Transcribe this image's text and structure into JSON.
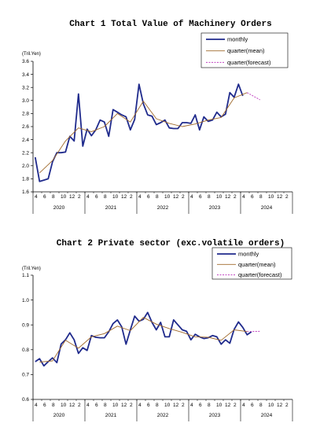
{
  "chart_data": [
    {
      "type": "line",
      "title": "Chart 1 Total Value of Machinery Orders",
      "ylabel": "(Tril.Yen)",
      "ylim": [
        1.6,
        3.6
      ],
      "yticks": [
        "1.6",
        "1.8",
        "2.0",
        "2.2",
        "2.4",
        "2.6",
        "2.8",
        "3.0",
        "3.2",
        "3.4",
        "3.6"
      ],
      "month_ticks": [
        "4",
        "6",
        "8",
        "10",
        "12",
        "2",
        "4",
        "6",
        "8",
        "10",
        "12",
        "2",
        "4",
        "6",
        "8",
        "10",
        "12",
        "2",
        "4",
        "6",
        "8",
        "10",
        "12",
        "2",
        "4",
        "6",
        "8",
        "10",
        "12",
        "2"
      ],
      "years": [
        "2020",
        "2021",
        "2022",
        "2023",
        "2024"
      ],
      "legend_position": "top-right",
      "series": [
        {
          "name": "monthly",
          "color": "#1f2a8c",
          "style": "solid-thick",
          "start": "2020-04",
          "values": [
            2.13,
            1.76,
            1.78,
            1.8,
            2.06,
            2.2,
            2.2,
            2.21,
            2.45,
            2.38,
            3.1,
            2.3,
            2.56,
            2.46,
            2.55,
            2.7,
            2.67,
            2.45,
            2.86,
            2.82,
            2.78,
            2.75,
            2.55,
            2.71,
            3.25,
            2.95,
            2.78,
            2.76,
            2.63,
            2.66,
            2.7,
            2.58,
            2.57,
            2.57,
            2.66,
            2.66,
            2.65,
            2.78,
            2.55,
            2.75,
            2.68,
            2.7,
            2.82,
            2.75,
            2.79,
            3.12,
            3.05,
            3.25,
            3.07
          ]
        },
        {
          "name": "quarter(mean)",
          "color": "#a06a2c",
          "style": "solid-thin",
          "x": [
            "2020-05",
            "2020-08",
            "2020-11",
            "2021-02",
            "2021-05",
            "2021-08",
            "2021-11",
            "2022-02",
            "2022-05",
            "2022-08",
            "2022-11",
            "2023-02",
            "2023-05",
            "2023-08",
            "2023-11",
            "2024-02",
            "2024-05"
          ],
          "values": [
            1.89,
            2.08,
            2.38,
            2.58,
            2.52,
            2.6,
            2.8,
            2.67,
            2.99,
            2.72,
            2.65,
            2.6,
            2.64,
            2.7,
            2.74,
            3.04,
            3.12
          ]
        },
        {
          "name": "quarter(forecast)",
          "color": "#c040c0",
          "style": "dashed",
          "x": [
            "2024-05",
            "2024-08"
          ],
          "values": [
            3.12,
            3.01
          ]
        }
      ]
    },
    {
      "type": "line",
      "title": "Chart 2 Private sector (exc.volatile orders)",
      "ylabel": "(Tril.Yen)",
      "ylim": [
        0.6,
        1.1
      ],
      "yticks": [
        "0.6",
        "0.7",
        "0.8",
        "0.9",
        "1.0",
        "1.1"
      ],
      "month_ticks": [
        "4",
        "6",
        "8",
        "10",
        "12",
        "2",
        "4",
        "6",
        "8",
        "10",
        "12",
        "2",
        "4",
        "6",
        "8",
        "10",
        "12",
        "2",
        "4",
        "6",
        "8",
        "10",
        "12",
        "2",
        "4",
        "6",
        "8",
        "10",
        "12",
        "2"
      ],
      "years": [
        "2020",
        "2021",
        "2022",
        "2023",
        "2024"
      ],
      "legend_position": "top-right",
      "series": [
        {
          "name": "monthly",
          "color": "#1f2a8c",
          "style": "solid-thick",
          "start": "2020-04",
          "values": [
            0.752,
            0.764,
            0.735,
            0.752,
            0.767,
            0.748,
            0.823,
            0.84,
            0.868,
            0.84,
            0.785,
            0.808,
            0.797,
            0.857,
            0.85,
            0.848,
            0.848,
            0.872,
            0.905,
            0.92,
            0.892,
            0.822,
            0.88,
            0.935,
            0.915,
            0.922,
            0.95,
            0.91,
            0.88,
            0.91,
            0.852,
            0.852,
            0.92,
            0.9,
            0.88,
            0.874,
            0.84,
            0.862,
            0.852,
            0.845,
            0.848,
            0.857,
            0.852,
            0.822,
            0.84,
            0.826,
            0.882,
            0.912,
            0.89,
            0.86,
            0.872
          ]
        },
        {
          "name": "quarter(mean)",
          "color": "#a06a2c",
          "style": "solid-thin",
          "x": [
            "2020-05",
            "2020-08",
            "2020-11",
            "2021-02",
            "2021-05",
            "2021-08",
            "2021-11",
            "2022-02",
            "2022-05",
            "2022-08",
            "2022-11",
            "2023-02",
            "2023-05",
            "2023-08",
            "2023-11",
            "2024-02",
            "2024-05"
          ],
          "values": [
            0.75,
            0.755,
            0.838,
            0.806,
            0.852,
            0.865,
            0.895,
            0.877,
            0.93,
            0.903,
            0.885,
            0.87,
            0.852,
            0.85,
            0.838,
            0.88,
            0.873
          ]
        },
        {
          "name": "quarter(forecast)",
          "color": "#c040c0",
          "style": "dashed",
          "x": [
            "2024-05",
            "2024-08"
          ],
          "values": [
            0.873,
            0.874
          ]
        }
      ]
    }
  ]
}
